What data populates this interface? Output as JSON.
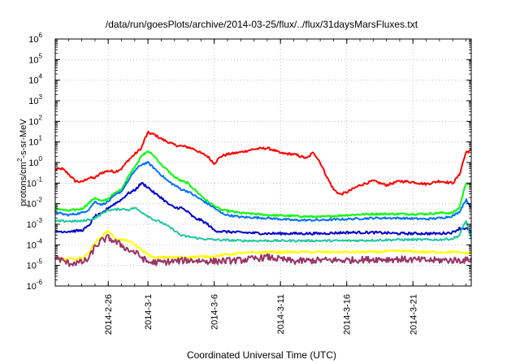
{
  "chart_data": {
    "type": "line",
    "title": "/data/run/goesPlots/archive/2014-03-25/flux/../flux/31daysMarsFluxes.txt",
    "xlabel": "Coordinated Universal Time (UTC)",
    "ylabel": {
      "pre": "protons/cm",
      "sup": "2",
      "post": "-s-sr-MeV"
    },
    "y_scale": "log",
    "ylim_exp": [
      -6,
      6
    ],
    "y_ticks": [
      {
        "exp": -6,
        "mant": "10",
        "sup": "-6"
      },
      {
        "exp": -5,
        "mant": "10",
        "sup": "-5"
      },
      {
        "exp": -4,
        "mant": "10",
        "sup": "-4"
      },
      {
        "exp": -3,
        "mant": "10",
        "sup": "-3"
      },
      {
        "exp": -2,
        "mant": "10",
        "sup": "-2"
      },
      {
        "exp": -1,
        "mant": "10",
        "sup": "-1"
      },
      {
        "exp": 0,
        "mant": "10",
        "sup": "0"
      },
      {
        "exp": 1,
        "mant": "10",
        "sup": "1"
      },
      {
        "exp": 2,
        "mant": "10",
        "sup": "2"
      },
      {
        "exp": 3,
        "mant": "10",
        "sup": "3"
      },
      {
        "exp": 4,
        "mant": "10",
        "sup": "4"
      },
      {
        "exp": 5,
        "mant": "10",
        "sup": "5"
      },
      {
        "exp": 6,
        "mant": "10",
        "sup": "6"
      }
    ],
    "xlim_days": [
      -4.0,
      27.4
    ],
    "x_ticks": [
      {
        "day": 0,
        "label": "2014-2-26"
      },
      {
        "day": 3,
        "label": "2014-3-1"
      },
      {
        "day": 8,
        "label": "2014-3-6"
      },
      {
        "day": 13,
        "label": "2014-3-11"
      },
      {
        "day": 18,
        "label": "2014-3-16"
      },
      {
        "day": 23,
        "label": "2014-3-21"
      }
    ],
    "grid": true,
    "legend": "none",
    "series": [
      {
        "color": "#ff0000",
        "noise": 0.06,
        "points": [
          [
            -4.0,
            -0.35
          ],
          [
            -3.5,
            -0.3
          ],
          [
            -3.0,
            -0.55
          ],
          [
            -2.5,
            -0.9
          ],
          [
            -2.0,
            -0.95
          ],
          [
            -1.5,
            -0.75
          ],
          [
            -1.0,
            -0.75
          ],
          [
            -0.5,
            -0.5
          ],
          [
            0.0,
            -0.4
          ],
          [
            0.5,
            -0.45
          ],
          [
            1.0,
            -0.3
          ],
          [
            1.5,
            0.1
          ],
          [
            2.0,
            0.4
          ],
          [
            2.5,
            0.7
          ],
          [
            2.8,
            1.2
          ],
          [
            3.0,
            1.45
          ],
          [
            3.5,
            1.35
          ],
          [
            4.0,
            1.15
          ],
          [
            4.5,
            1.0
          ],
          [
            5.0,
            0.85
          ],
          [
            5.5,
            0.8
          ],
          [
            6.0,
            0.75
          ],
          [
            6.5,
            0.65
          ],
          [
            7.0,
            0.45
          ],
          [
            7.5,
            0.3
          ],
          [
            8.0,
            -0.05
          ],
          [
            8.5,
            0.3
          ],
          [
            9.0,
            0.4
          ],
          [
            10.0,
            0.5
          ],
          [
            11.0,
            0.65
          ],
          [
            12.0,
            0.7
          ],
          [
            12.5,
            0.6
          ],
          [
            13.0,
            0.45
          ],
          [
            14.0,
            0.4
          ],
          [
            15.0,
            0.2
          ],
          [
            15.5,
            0.5
          ],
          [
            16.0,
            0.0
          ],
          [
            16.5,
            -0.7
          ],
          [
            17.0,
            -1.3
          ],
          [
            17.5,
            -1.55
          ],
          [
            18.0,
            -1.45
          ],
          [
            19.0,
            -1.1
          ],
          [
            20.0,
            -0.9
          ],
          [
            21.0,
            -1.1
          ],
          [
            22.0,
            -0.9
          ],
          [
            23.0,
            -0.95
          ],
          [
            24.0,
            -1.05
          ],
          [
            25.0,
            -0.9
          ],
          [
            26.0,
            -1.0
          ],
          [
            26.5,
            -0.6
          ],
          [
            27.0,
            0.5
          ],
          [
            27.4,
            0.6
          ]
        ]
      },
      {
        "color": "#00ff00",
        "noise": 0.05,
        "points": [
          [
            -4.0,
            -2.2
          ],
          [
            -3.5,
            -2.3
          ],
          [
            -3.0,
            -2.35
          ],
          [
            -2.0,
            -2.25
          ],
          [
            -1.5,
            -2.0
          ],
          [
            -1.0,
            -1.7
          ],
          [
            -0.5,
            -1.9
          ],
          [
            0.0,
            -1.75
          ],
          [
            0.5,
            -1.5
          ],
          [
            1.0,
            -1.3
          ],
          [
            1.5,
            -0.7
          ],
          [
            2.0,
            -0.2
          ],
          [
            2.5,
            0.3
          ],
          [
            3.0,
            0.55
          ],
          [
            3.5,
            0.3
          ],
          [
            4.0,
            -0.1
          ],
          [
            4.5,
            -0.4
          ],
          [
            5.0,
            -0.7
          ],
          [
            5.5,
            -0.9
          ],
          [
            6.0,
            -1.0
          ],
          [
            6.5,
            -1.3
          ],
          [
            7.0,
            -1.6
          ],
          [
            7.5,
            -1.9
          ],
          [
            8.0,
            -2.1
          ],
          [
            8.5,
            -2.3
          ],
          [
            9.0,
            -2.35
          ],
          [
            10.0,
            -2.45
          ],
          [
            12.0,
            -2.55
          ],
          [
            14.0,
            -2.6
          ],
          [
            16.0,
            -2.65
          ],
          [
            18.0,
            -2.55
          ],
          [
            20.0,
            -2.5
          ],
          [
            22.0,
            -2.5
          ],
          [
            24.0,
            -2.5
          ],
          [
            25.0,
            -2.45
          ],
          [
            26.0,
            -2.45
          ],
          [
            26.5,
            -2.2
          ],
          [
            27.0,
            -1.0
          ],
          [
            27.4,
            -1.05
          ]
        ]
      },
      {
        "color": "#0070ff",
        "noise": 0.05,
        "points": [
          [
            -4.0,
            -2.4
          ],
          [
            -3.5,
            -2.5
          ],
          [
            -3.0,
            -2.55
          ],
          [
            -2.0,
            -2.45
          ],
          [
            -1.5,
            -2.3
          ],
          [
            -1.0,
            -1.9
          ],
          [
            -0.5,
            -2.05
          ],
          [
            0.0,
            -1.9
          ],
          [
            0.5,
            -1.6
          ],
          [
            1.0,
            -1.4
          ],
          [
            1.5,
            -0.9
          ],
          [
            2.0,
            -0.4
          ],
          [
            2.5,
            -0.1
          ],
          [
            3.0,
            0.0
          ],
          [
            3.5,
            -0.3
          ],
          [
            4.0,
            -0.6
          ],
          [
            4.5,
            -0.9
          ],
          [
            5.0,
            -1.1
          ],
          [
            5.5,
            -1.3
          ],
          [
            6.0,
            -1.4
          ],
          [
            6.5,
            -1.6
          ],
          [
            7.0,
            -1.8
          ],
          [
            7.5,
            -2.0
          ],
          [
            8.0,
            -2.2
          ],
          [
            8.5,
            -2.45
          ],
          [
            9.0,
            -2.55
          ],
          [
            10.0,
            -2.65
          ],
          [
            12.0,
            -2.7
          ],
          [
            14.0,
            -2.8
          ],
          [
            16.0,
            -2.8
          ],
          [
            18.0,
            -2.75
          ],
          [
            20.0,
            -2.7
          ],
          [
            22.0,
            -2.7
          ],
          [
            24.0,
            -2.75
          ],
          [
            25.0,
            -2.7
          ],
          [
            26.0,
            -2.6
          ],
          [
            26.5,
            -2.4
          ],
          [
            27.0,
            -1.8
          ],
          [
            27.4,
            -2.2
          ]
        ]
      },
      {
        "color": "#0000cc",
        "noise": 0.06,
        "points": [
          [
            -4.0,
            -3.35
          ],
          [
            -3.0,
            -3.35
          ],
          [
            -2.0,
            -3.3
          ],
          [
            -1.5,
            -3.1
          ],
          [
            -1.0,
            -2.6
          ],
          [
            -0.5,
            -2.5
          ],
          [
            0.0,
            -2.2
          ],
          [
            0.5,
            -2.0
          ],
          [
            1.0,
            -1.8
          ],
          [
            1.5,
            -1.5
          ],
          [
            2.0,
            -1.35
          ],
          [
            2.5,
            -1.0
          ],
          [
            3.0,
            -1.2
          ],
          [
            3.5,
            -1.5
          ],
          [
            4.0,
            -1.7
          ],
          [
            4.5,
            -2.0
          ],
          [
            5.0,
            -2.2
          ],
          [
            5.5,
            -2.2
          ],
          [
            6.0,
            -2.4
          ],
          [
            6.5,
            -2.7
          ],
          [
            7.0,
            -2.8
          ],
          [
            7.5,
            -3.0
          ],
          [
            8.0,
            -3.3
          ],
          [
            8.5,
            -3.35
          ],
          [
            10.0,
            -3.4
          ],
          [
            12.0,
            -3.45
          ],
          [
            14.0,
            -3.45
          ],
          [
            16.0,
            -3.45
          ],
          [
            18.0,
            -3.4
          ],
          [
            20.0,
            -3.4
          ],
          [
            22.0,
            -3.45
          ],
          [
            24.0,
            -3.45
          ],
          [
            25.0,
            -3.45
          ],
          [
            26.0,
            -3.4
          ],
          [
            26.5,
            -3.2
          ],
          [
            27.0,
            -3.2
          ],
          [
            27.4,
            -3.4
          ]
        ]
      },
      {
        "color": "#1ec8a0",
        "noise": 0.05,
        "points": [
          [
            -4.0,
            -2.85
          ],
          [
            -3.0,
            -2.85
          ],
          [
            -2.0,
            -2.85
          ],
          [
            -1.0,
            -2.7
          ],
          [
            -0.5,
            -2.5
          ],
          [
            0.0,
            -2.3
          ],
          [
            0.5,
            -2.3
          ],
          [
            1.0,
            -2.25
          ],
          [
            1.5,
            -2.3
          ],
          [
            2.0,
            -2.2
          ],
          [
            2.5,
            -2.4
          ],
          [
            3.0,
            -2.6
          ],
          [
            3.5,
            -2.8
          ],
          [
            4.0,
            -2.9
          ],
          [
            4.5,
            -3.1
          ],
          [
            5.0,
            -3.3
          ],
          [
            5.5,
            -3.55
          ],
          [
            6.0,
            -3.6
          ],
          [
            7.0,
            -3.7
          ],
          [
            8.0,
            -3.75
          ],
          [
            10.0,
            -3.8
          ],
          [
            14.0,
            -3.8
          ],
          [
            18.0,
            -3.8
          ],
          [
            22.0,
            -3.75
          ],
          [
            25.0,
            -3.75
          ],
          [
            26.0,
            -3.7
          ],
          [
            26.5,
            -3.55
          ],
          [
            27.0,
            -2.8
          ],
          [
            27.4,
            -3.7
          ]
        ]
      },
      {
        "color": "#ffff00",
        "noise": 0.06,
        "points": [
          [
            -4.0,
            -4.7
          ],
          [
            -3.0,
            -4.7
          ],
          [
            -2.0,
            -4.65
          ],
          [
            -1.5,
            -4.4
          ],
          [
            -1.0,
            -3.9
          ],
          [
            -0.5,
            -3.6
          ],
          [
            0.0,
            -3.3
          ],
          [
            0.5,
            -3.7
          ],
          [
            1.0,
            -3.75
          ],
          [
            1.5,
            -3.8
          ],
          [
            2.0,
            -4.0
          ],
          [
            2.5,
            -4.25
          ],
          [
            3.0,
            -4.45
          ],
          [
            3.5,
            -4.65
          ],
          [
            4.0,
            -4.6
          ],
          [
            5.0,
            -4.6
          ],
          [
            6.0,
            -4.6
          ],
          [
            8.0,
            -4.55
          ],
          [
            10.0,
            -4.4
          ],
          [
            12.0,
            -4.35
          ],
          [
            14.0,
            -4.35
          ],
          [
            16.0,
            -4.35
          ],
          [
            18.0,
            -4.35
          ],
          [
            20.0,
            -4.35
          ],
          [
            22.0,
            -4.3
          ],
          [
            24.0,
            -4.35
          ],
          [
            26.0,
            -4.35
          ],
          [
            27.0,
            -4.4
          ],
          [
            27.4,
            -4.4
          ]
        ]
      },
      {
        "color": "#993366",
        "noise": 0.16,
        "points": [
          [
            -4.0,
            -4.6
          ],
          [
            -3.5,
            -4.75
          ],
          [
            -3.0,
            -4.9
          ],
          [
            -2.0,
            -4.85
          ],
          [
            -1.5,
            -4.7
          ],
          [
            -1.0,
            -4.1
          ],
          [
            -0.5,
            -3.8
          ],
          [
            0.0,
            -3.65
          ],
          [
            0.5,
            -3.85
          ],
          [
            1.0,
            -4.0
          ],
          [
            1.5,
            -4.25
          ],
          [
            2.0,
            -4.35
          ],
          [
            2.5,
            -4.6
          ],
          [
            3.0,
            -4.85
          ],
          [
            4.0,
            -4.85
          ],
          [
            6.0,
            -4.75
          ],
          [
            8.0,
            -4.8
          ],
          [
            10.0,
            -4.75
          ],
          [
            12.0,
            -4.6
          ],
          [
            14.0,
            -4.8
          ],
          [
            16.0,
            -4.75
          ],
          [
            18.0,
            -4.75
          ],
          [
            20.0,
            -4.7
          ],
          [
            22.0,
            -4.7
          ],
          [
            24.0,
            -4.75
          ],
          [
            26.0,
            -4.75
          ],
          [
            27.0,
            -4.75
          ],
          [
            27.4,
            -4.7
          ]
        ]
      }
    ]
  }
}
